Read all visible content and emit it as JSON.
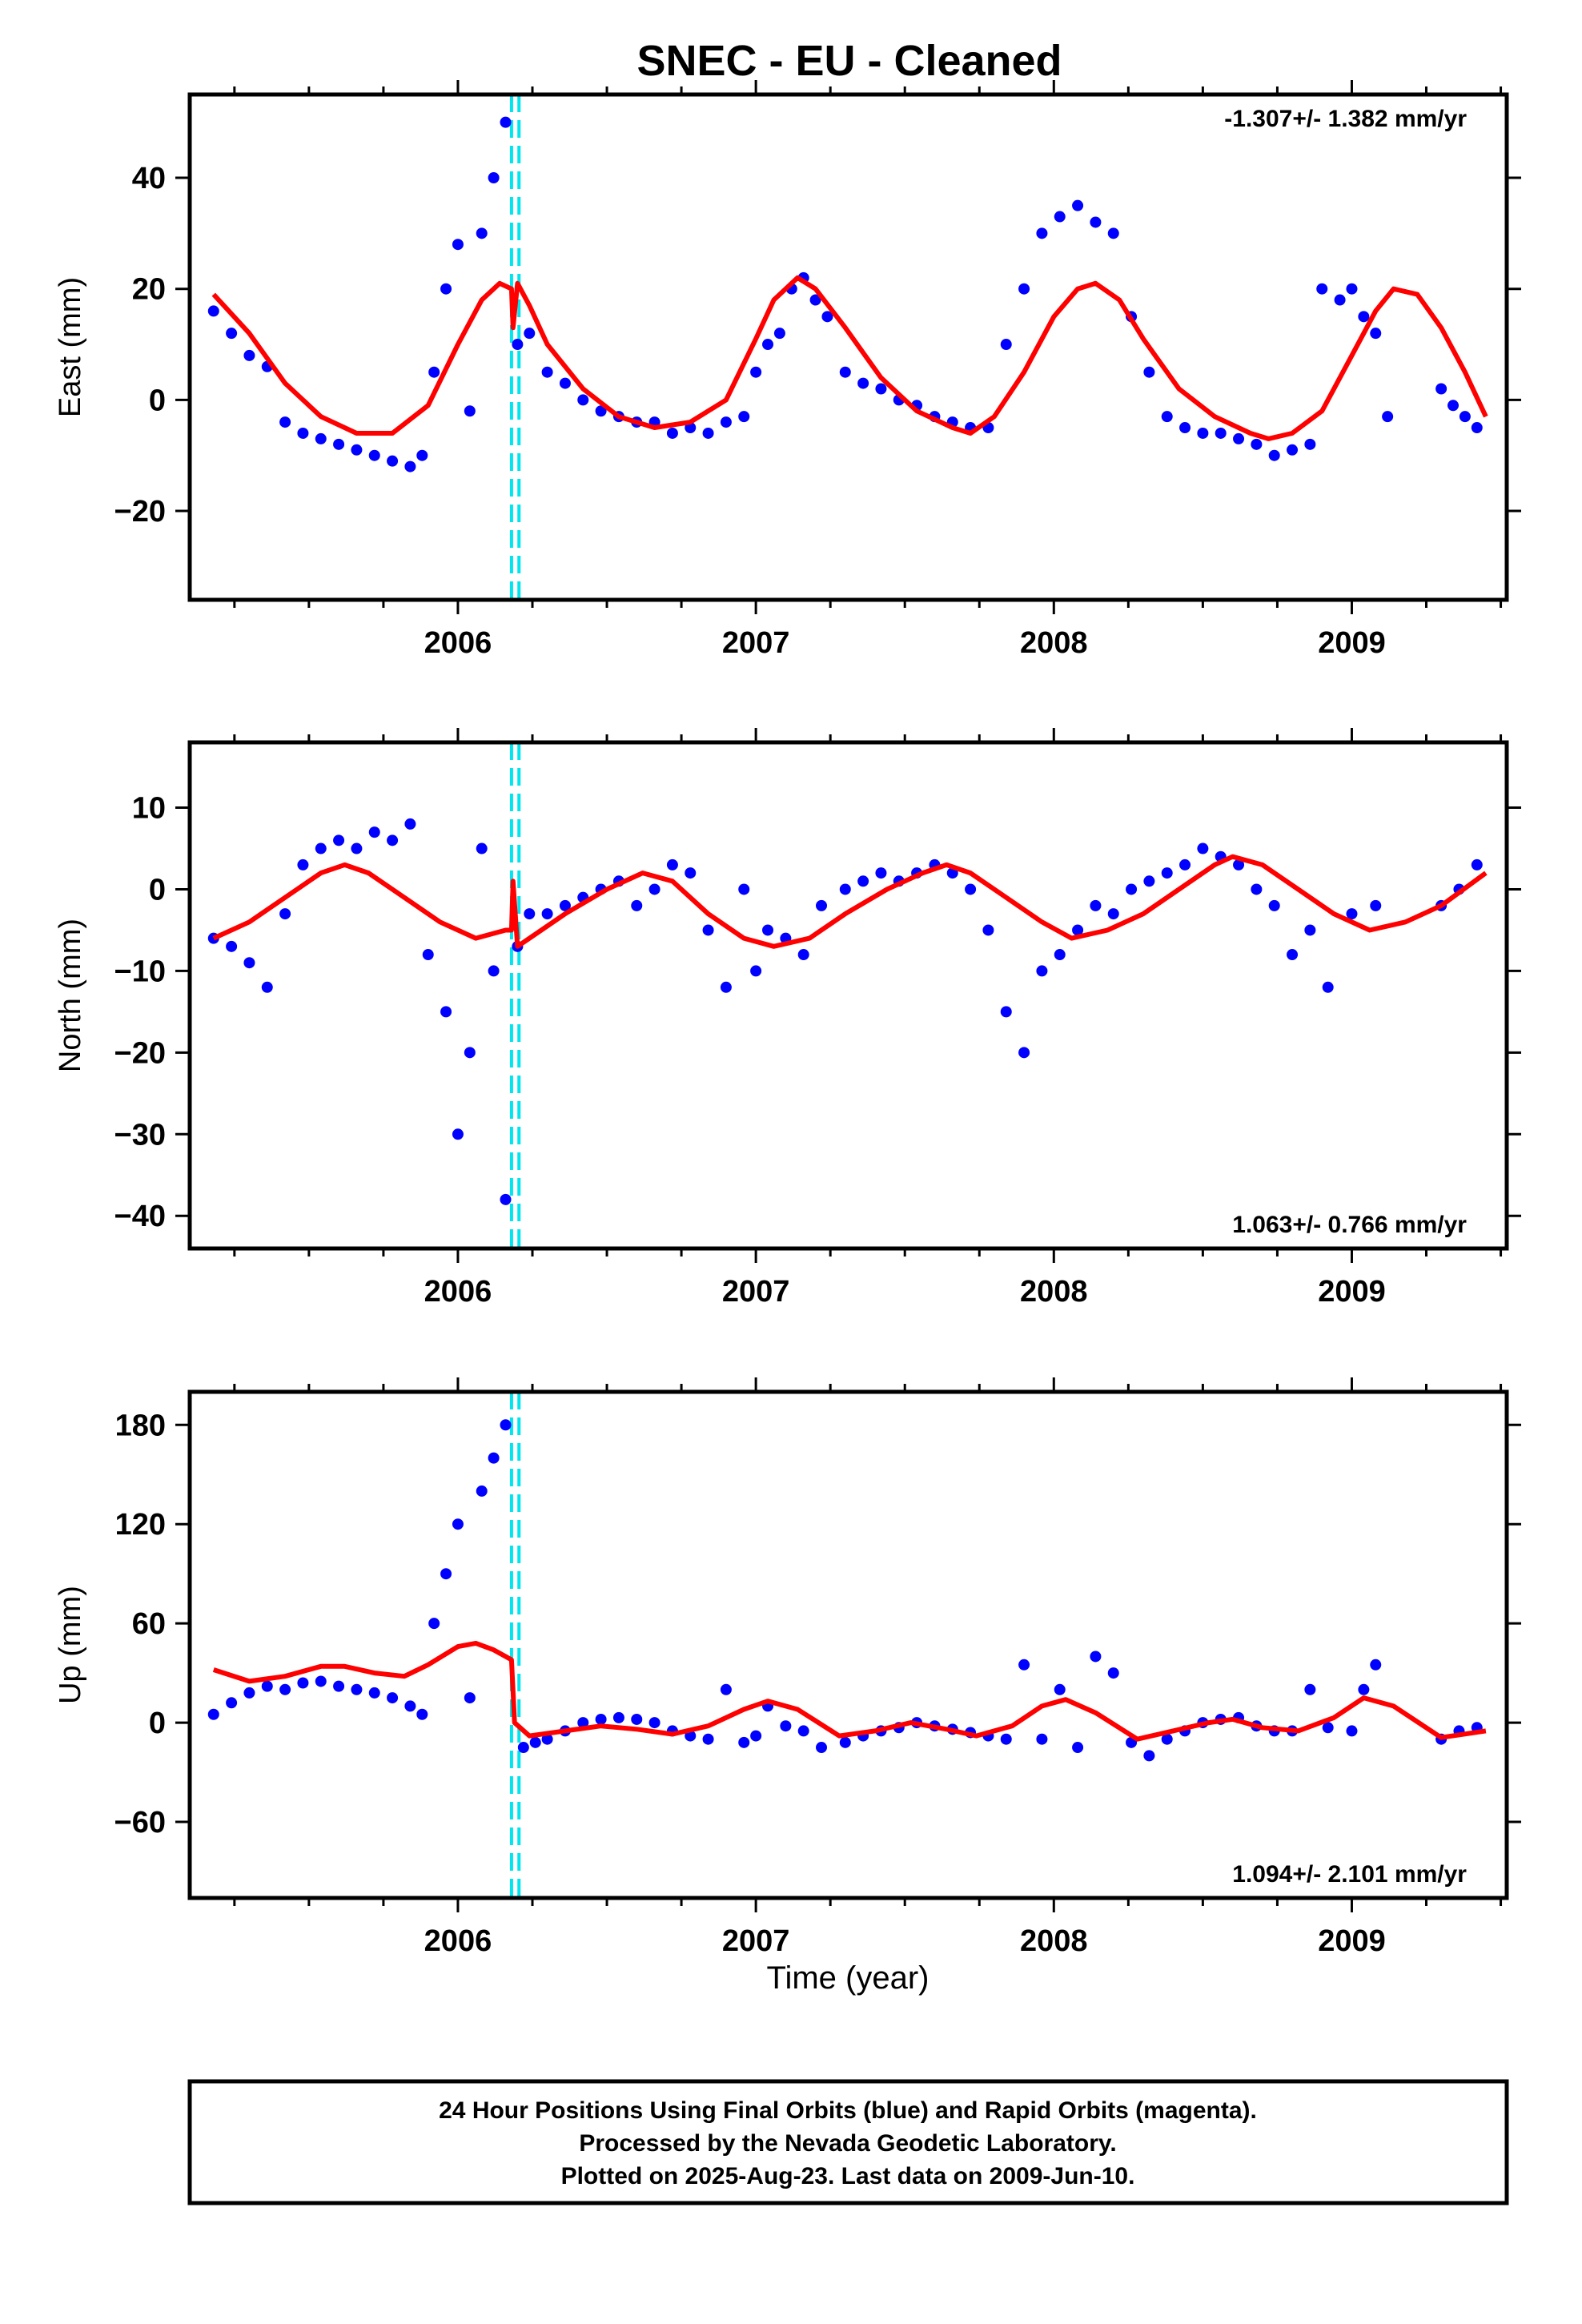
{
  "chart_data": [
    {
      "type": "scatter",
      "component": "East",
      "ylabel": "East (mm)",
      "ylim": [
        -36,
        55
      ],
      "yticks": [
        -20,
        0,
        20,
        40
      ],
      "xlim": [
        2005.1,
        2009.52
      ],
      "xticks": [
        2006,
        2007,
        2008,
        2009
      ],
      "rate_label": "-1.307+/- 1.382 mm/yr",
      "rate_position": "top-right",
      "colors": {
        "points": "#0000ff",
        "model": "#ff0000",
        "break": "#00e5ee"
      },
      "break_epochs": [
        2006.18,
        2006.205
      ],
      "series": [
        {
          "name": "",
          "kind": "points",
          "x": [
            2005.18,
            2005.24,
            2005.3,
            2005.36,
            2005.42,
            2005.48,
            2005.54,
            2005.6,
            2005.66,
            2005.72,
            2005.78,
            2005.84,
            2005.88,
            2005.92,
            2005.96,
            2006.0,
            2006.04,
            2006.08,
            2006.12,
            2006.16,
            2006.2,
            2006.24,
            2006.3,
            2006.36,
            2006.42,
            2006.48,
            2006.54,
            2006.6,
            2006.66,
            2006.72,
            2006.78,
            2006.84,
            2006.9,
            2006.96,
            2007.0,
            2007.04,
            2007.08,
            2007.12,
            2007.16,
            2007.2,
            2007.24,
            2007.3,
            2007.36,
            2007.42,
            2007.48,
            2007.54,
            2007.6,
            2007.66,
            2007.72,
            2007.78,
            2007.84,
            2007.9,
            2007.96,
            2008.02,
            2008.08,
            2008.14,
            2008.2,
            2008.26,
            2008.32,
            2008.38,
            2008.44,
            2008.5,
            2008.56,
            2008.62,
            2008.68,
            2008.74,
            2008.8,
            2008.86,
            2008.9,
            2008.96,
            2009.0,
            2009.04,
            2009.08,
            2009.12,
            2009.3,
            2009.34,
            2009.38,
            2009.42
          ],
          "y": [
            16,
            12,
            8,
            6,
            -4,
            -6,
            -7,
            -8,
            -9,
            -10,
            -11,
            -12,
            -10,
            5,
            20,
            28,
            -2,
            30,
            40,
            50,
            10,
            12,
            5,
            3,
            0,
            -2,
            -3,
            -4,
            -4,
            -6,
            -5,
            -6,
            -4,
            -3,
            5,
            10,
            12,
            20,
            22,
            18,
            15,
            5,
            3,
            2,
            0,
            -1,
            -3,
            -4,
            -5,
            -5,
            10,
            20,
            30,
            33,
            35,
            32,
            30,
            15,
            5,
            -3,
            -5,
            -6,
            -6,
            -7,
            -8,
            -10,
            -9,
            -8,
            20,
            18,
            20,
            15,
            12,
            -3,
            2,
            -1,
            -3,
            -5
          ]
        },
        {
          "name": "",
          "kind": "model",
          "x": [
            2005.18,
            2005.3,
            2005.42,
            2005.54,
            2005.66,
            2005.78,
            2005.9,
            2006.0,
            2006.08,
            2006.14,
            2006.18,
            2006.185,
            2006.2,
            2006.24,
            2006.3,
            2006.42,
            2006.54,
            2006.66,
            2006.78,
            2006.9,
            2007.0,
            2007.06,
            2007.14,
            2007.2,
            2007.3,
            2007.42,
            2007.54,
            2007.66,
            2007.72,
            2007.8,
            2007.9,
            2008.0,
            2008.08,
            2008.14,
            2008.22,
            2008.3,
            2008.42,
            2008.54,
            2008.66,
            2008.72,
            2008.8,
            2008.9,
            2009.0,
            2009.08,
            2009.14,
            2009.22,
            2009.3,
            2009.38,
            2009.45
          ],
          "y": [
            19,
            12,
            3,
            -3,
            -6,
            -6,
            -1,
            10,
            18,
            21,
            20,
            13,
            21,
            17,
            10,
            2,
            -3,
            -5,
            -4,
            0,
            11,
            18,
            22,
            20,
            13,
            4,
            -2,
            -5,
            -6,
            -3,
            5,
            15,
            20,
            21,
            18,
            11,
            2,
            -3,
            -6,
            -7,
            -6,
            -2,
            8,
            16,
            20,
            19,
            13,
            5,
            -3
          ]
        }
      ]
    },
    {
      "type": "scatter",
      "component": "North",
      "ylabel": "North (mm)",
      "ylim": [
        -44,
        18
      ],
      "yticks": [
        -40,
        -30,
        -20,
        -10,
        0,
        10
      ],
      "xlim": [
        2005.1,
        2009.52
      ],
      "xticks": [
        2006,
        2007,
        2008,
        2009
      ],
      "rate_label": "1.063+/- 0.766 mm/yr",
      "rate_position": "bottom-right",
      "colors": {
        "points": "#0000ff",
        "model": "#ff0000",
        "break": "#00e5ee"
      },
      "break_epochs": [
        2006.18,
        2006.205
      ],
      "series": [
        {
          "name": "",
          "kind": "points",
          "x": [
            2005.18,
            2005.24,
            2005.3,
            2005.36,
            2005.42,
            2005.48,
            2005.54,
            2005.6,
            2005.66,
            2005.72,
            2005.78,
            2005.84,
            2005.9,
            2005.96,
            2006.0,
            2006.04,
            2006.08,
            2006.12,
            2006.16,
            2006.2,
            2006.24,
            2006.3,
            2006.36,
            2006.42,
            2006.48,
            2006.54,
            2006.6,
            2006.66,
            2006.72,
            2006.78,
            2006.84,
            2006.9,
            2006.96,
            2007.0,
            2007.04,
            2007.1,
            2007.16,
            2007.22,
            2007.3,
            2007.36,
            2007.42,
            2007.48,
            2007.54,
            2007.6,
            2007.66,
            2007.72,
            2007.78,
            2007.84,
            2007.9,
            2007.96,
            2008.02,
            2008.08,
            2008.14,
            2008.2,
            2008.26,
            2008.32,
            2008.38,
            2008.44,
            2008.5,
            2008.56,
            2008.62,
            2008.68,
            2008.74,
            2008.8,
            2008.86,
            2008.92,
            2009.0,
            2009.08,
            2009.3,
            2009.36,
            2009.42
          ],
          "y": [
            -6,
            -7,
            -9,
            -12,
            -3,
            3,
            5,
            6,
            5,
            7,
            6,
            8,
            -8,
            -15,
            -30,
            -20,
            5,
            -10,
            -38,
            -7,
            -3,
            -3,
            -2,
            -1,
            0,
            1,
            -2,
            0,
            3,
            2,
            -5,
            -12,
            0,
            -10,
            -5,
            -6,
            -8,
            -2,
            0,
            1,
            2,
            1,
            2,
            3,
            2,
            0,
            -5,
            -15,
            -20,
            -10,
            -8,
            -5,
            -2,
            -3,
            0,
            1,
            2,
            3,
            5,
            4,
            3,
            0,
            -2,
            -8,
            -5,
            -12,
            -3,
            -2,
            -2,
            0,
            3
          ]
        },
        {
          "name": "",
          "kind": "model",
          "x": [
            2005.18,
            2005.3,
            2005.42,
            2005.54,
            2005.62,
            2005.7,
            2005.82,
            2005.94,
            2006.06,
            2006.16,
            2006.18,
            2006.185,
            2006.2,
            2006.24,
            2006.36,
            2006.5,
            2006.62,
            2006.72,
            2006.84,
            2006.96,
            2007.06,
            2007.18,
            2007.3,
            2007.44,
            2007.56,
            2007.64,
            2007.72,
            2007.84,
            2007.96,
            2008.06,
            2008.18,
            2008.3,
            2008.42,
            2008.54,
            2008.6,
            2008.7,
            2008.82,
            2008.94,
            2009.06,
            2009.18,
            2009.3,
            2009.45
          ],
          "y": [
            -6,
            -4,
            -1,
            2,
            3,
            2,
            -1,
            -4,
            -6,
            -5,
            -5,
            1,
            -7,
            -6,
            -3,
            0,
            2,
            1,
            -3,
            -6,
            -7,
            -6,
            -3,
            0,
            2,
            3,
            2,
            -1,
            -4,
            -6,
            -5,
            -3,
            0,
            3,
            4,
            3,
            0,
            -3,
            -5,
            -4,
            -2,
            2
          ]
        }
      ]
    },
    {
      "type": "scatter",
      "component": "Up",
      "ylabel": "Up (mm)",
      "xlabel": "Time (year)",
      "ylim": [
        -106,
        200
      ],
      "yticks": [
        -60,
        0,
        60,
        120,
        180
      ],
      "xlim": [
        2005.1,
        2009.52
      ],
      "xticks": [
        2006,
        2007,
        2008,
        2009
      ],
      "rate_label": "1.094+/- 2.101 mm/yr",
      "rate_position": "bottom-right",
      "colors": {
        "points": "#0000ff",
        "model": "#ff0000",
        "break": "#00e5ee"
      },
      "break_epochs": [
        2006.18,
        2006.205
      ],
      "series": [
        {
          "name": "",
          "kind": "points",
          "x": [
            2005.18,
            2005.24,
            2005.3,
            2005.36,
            2005.42,
            2005.48,
            2005.54,
            2005.6,
            2005.66,
            2005.72,
            2005.78,
            2005.84,
            2005.88,
            2005.92,
            2005.96,
            2006.0,
            2006.04,
            2006.08,
            2006.12,
            2006.16,
            2006.22,
            2006.26,
            2006.3,
            2006.36,
            2006.42,
            2006.48,
            2006.54,
            2006.6,
            2006.66,
            2006.72,
            2006.78,
            2006.84,
            2006.9,
            2006.96,
            2007.0,
            2007.04,
            2007.1,
            2007.16,
            2007.22,
            2007.3,
            2007.36,
            2007.42,
            2007.48,
            2007.54,
            2007.6,
            2007.66,
            2007.72,
            2007.78,
            2007.84,
            2007.9,
            2007.96,
            2008.02,
            2008.08,
            2008.14,
            2008.2,
            2008.26,
            2008.32,
            2008.38,
            2008.44,
            2008.5,
            2008.56,
            2008.62,
            2008.68,
            2008.74,
            2008.8,
            2008.86,
            2008.92,
            2009.0,
            2009.04,
            2009.08,
            2009.3,
            2009.36,
            2009.42
          ],
          "y": [
            5,
            12,
            18,
            22,
            20,
            24,
            25,
            22,
            20,
            18,
            15,
            10,
            5,
            60,
            90,
            120,
            15,
            140,
            160,
            180,
            -15,
            -12,
            -10,
            -5,
            0,
            2,
            3,
            2,
            0,
            -5,
            -8,
            -10,
            20,
            -12,
            -8,
            10,
            -2,
            -5,
            -15,
            -12,
            -8,
            -5,
            -3,
            0,
            -2,
            -4,
            -6,
            -8,
            -10,
            35,
            -10,
            20,
            -15,
            40,
            30,
            -12,
            -20,
            -10,
            -5,
            0,
            2,
            3,
            -2,
            -5,
            -5,
            20,
            -3,
            -5,
            20,
            35,
            -10,
            -5,
            -3
          ]
        },
        {
          "name": "",
          "kind": "model",
          "x": [
            2005.18,
            2005.3,
            2005.42,
            2005.54,
            2005.62,
            2005.72,
            2005.82,
            2005.9,
            2006.0,
            2006.06,
            2006.12,
            2006.18,
            2006.19,
            2006.24,
            2006.36,
            2006.48,
            2006.6,
            2006.72,
            2006.84,
            2006.96,
            2007.04,
            2007.14,
            2007.28,
            2007.4,
            2007.52,
            2007.64,
            2007.74,
            2007.86,
            2007.96,
            2008.04,
            2008.14,
            2008.28,
            2008.4,
            2008.52,
            2008.6,
            2008.7,
            2008.82,
            2008.94,
            2009.04,
            2009.14,
            2009.3,
            2009.45
          ],
          "y": [
            32,
            25,
            28,
            34,
            34,
            30,
            28,
            35,
            46,
            48,
            44,
            38,
            0,
            -8,
            -5,
            -2,
            -4,
            -7,
            -2,
            8,
            13,
            8,
            -8,
            -5,
            0,
            -4,
            -8,
            -2,
            10,
            14,
            6,
            -10,
            -5,
            0,
            2,
            -3,
            -5,
            3,
            15,
            10,
            -9,
            -5
          ]
        }
      ]
    }
  ],
  "title": "SNEC  - EU - Cleaned",
  "footer": {
    "line1": "24 Hour Positions Using Final Orbits (blue) and Rapid Orbits (magenta).",
    "line2": "Processed by the Nevada Geodetic Laboratory.",
    "line3": "Plotted on 2025-Aug-23. Last data on 2009-Jun-10."
  }
}
